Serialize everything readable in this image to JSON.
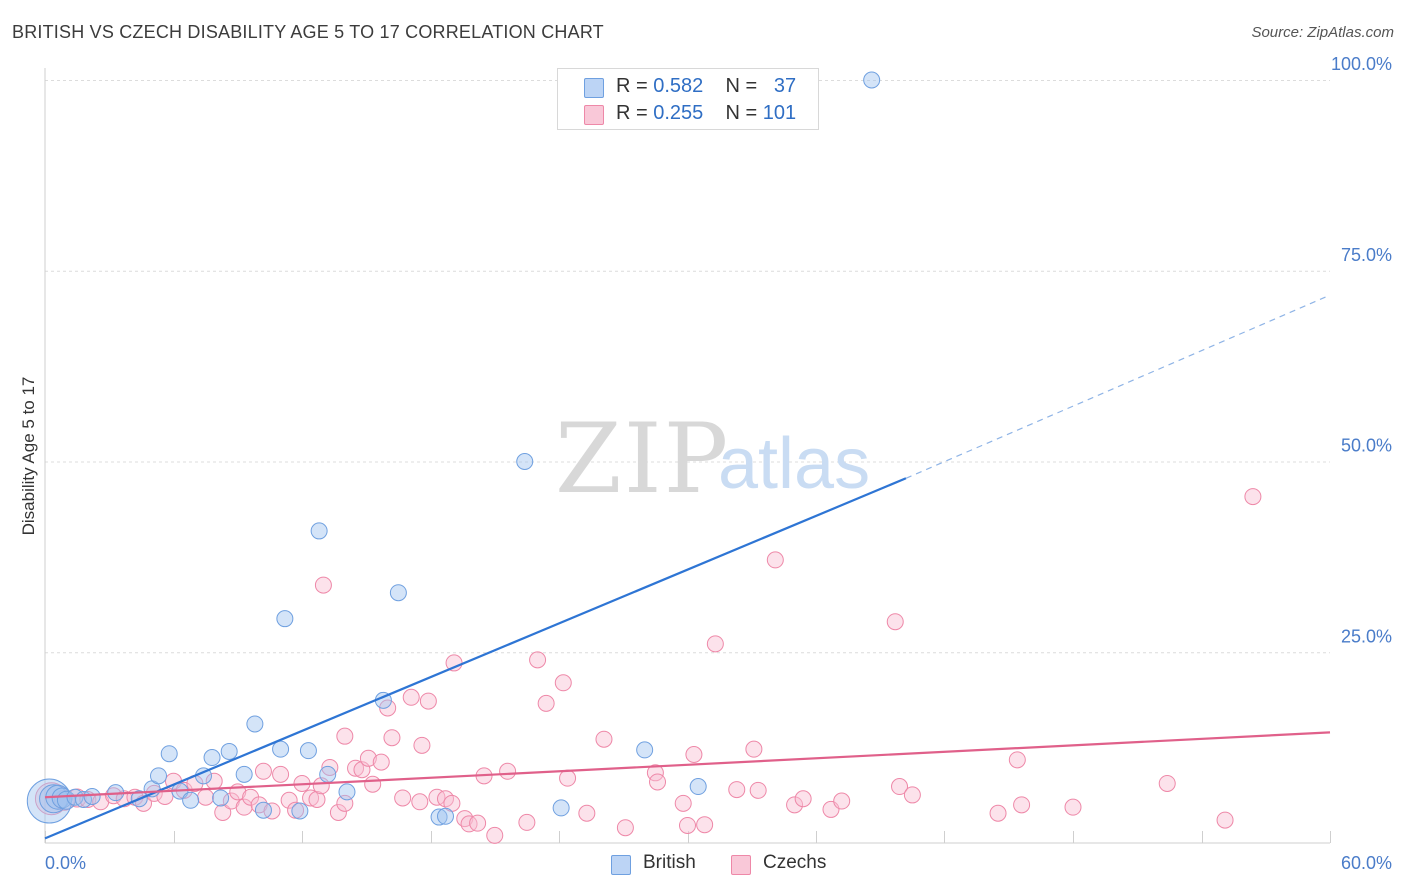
{
  "title": "BRITISH VS CZECH DISABILITY AGE 5 TO 17 CORRELATION CHART",
  "source": "Source: ZipAtlas.com",
  "watermark": {
    "zip": "ZIP",
    "atlas": "atlas"
  },
  "legend": {
    "r_label": "R =",
    "n_label": "N =",
    "items": [
      {
        "name": "British",
        "r": "0.582",
        "n": "37",
        "color": "#6fa0e0",
        "fill": "#bcd4f5"
      },
      {
        "name": "Czechs",
        "r": "0.255",
        "n": "101",
        "color": "#ee88a8",
        "fill": "#f9c8d8"
      }
    ]
  },
  "chart_data": {
    "type": "scatter",
    "title": "BRITISH VS CZECH DISABILITY AGE 5 TO 17 CORRELATION CHART",
    "xlabel": "",
    "ylabel": "Disability Age 5 to 17",
    "xlim": [
      0,
      60
    ],
    "ylim": [
      0,
      100
    ],
    "x_tick_labels": [
      "0.0%",
      "60.0%"
    ],
    "y_ticks": [
      25,
      50,
      75,
      100
    ],
    "y_tick_labels": [
      "25.0%",
      "50.0%",
      "75.0%",
      "100.0%"
    ],
    "series": [
      {
        "name": "British",
        "color": "#6fa0e0",
        "trend": {
          "x0": 0,
          "y0": 0.6,
          "x1": 40.2,
          "y1": 47.8,
          "dash_to_x": 60,
          "dash_to_y": 71.8,
          "color": "#2e75d4"
        },
        "points": [
          [
            0.2,
            5.5,
            22
          ],
          [
            0.4,
            5.8,
            14
          ],
          [
            0.6,
            6.0,
            12
          ],
          [
            0.8,
            5.9,
            10
          ],
          [
            1.0,
            5.6,
            9
          ],
          [
            1.4,
            6.0,
            8
          ],
          [
            1.8,
            5.7,
            8
          ],
          [
            2.2,
            6.1,
            8
          ],
          [
            3.3,
            6.6,
            8
          ],
          [
            4.4,
            5.8,
            8
          ],
          [
            5.0,
            7.1,
            8
          ],
          [
            5.3,
            8.8,
            8
          ],
          [
            5.8,
            11.7,
            8
          ],
          [
            6.3,
            6.8,
            8
          ],
          [
            6.8,
            5.6,
            8
          ],
          [
            7.4,
            8.8,
            8
          ],
          [
            7.8,
            11.2,
            8
          ],
          [
            8.2,
            5.9,
            8
          ],
          [
            8.6,
            12.0,
            8
          ],
          [
            9.3,
            9.0,
            8
          ],
          [
            9.8,
            15.6,
            8
          ],
          [
            10.2,
            4.3,
            8
          ],
          [
            11.0,
            12.3,
            8
          ],
          [
            11.2,
            29.4,
            8
          ],
          [
            11.9,
            4.2,
            8
          ],
          [
            12.3,
            12.1,
            8
          ],
          [
            12.8,
            40.9,
            8
          ],
          [
            13.2,
            9.0,
            8
          ],
          [
            14.1,
            6.7,
            8
          ],
          [
            15.8,
            18.7,
            8
          ],
          [
            16.5,
            32.8,
            8
          ],
          [
            18.4,
            3.4,
            8
          ],
          [
            18.7,
            3.5,
            8
          ],
          [
            22.4,
            50.0,
            8
          ],
          [
            24.1,
            4.6,
            8
          ],
          [
            28.0,
            12.2,
            8
          ],
          [
            30.5,
            7.4,
            8
          ],
          [
            38.6,
            100.0,
            8
          ]
        ]
      },
      {
        "name": "Czechs",
        "color": "#ee88a8",
        "trend": {
          "x0": 0,
          "y0": 6.0,
          "x1": 60,
          "y1": 14.5,
          "color": "#e0608a"
        },
        "points": [
          [
            0.3,
            5.8,
            16
          ],
          [
            0.9,
            5.6,
            10
          ],
          [
            1.5,
            5.9,
            9
          ],
          [
            2.0,
            5.7,
            8
          ],
          [
            2.6,
            5.4,
            8
          ],
          [
            3.2,
            6.2,
            8
          ],
          [
            3.7,
            5.8,
            8
          ],
          [
            4.2,
            6.0,
            8
          ],
          [
            4.6,
            5.2,
            8
          ],
          [
            5.1,
            6.5,
            8
          ],
          [
            5.6,
            6.1,
            8
          ],
          [
            6.0,
            8.1,
            8
          ],
          [
            6.5,
            6.9,
            8
          ],
          [
            7.0,
            7.8,
            8
          ],
          [
            7.5,
            6.0,
            8
          ],
          [
            7.9,
            8.1,
            8
          ],
          [
            8.3,
            4.0,
            8
          ],
          [
            8.7,
            5.5,
            8
          ],
          [
            9.0,
            6.7,
            8
          ],
          [
            9.3,
            4.7,
            8
          ],
          [
            9.6,
            6.0,
            8
          ],
          [
            10.0,
            5.0,
            8
          ],
          [
            10.2,
            9.4,
            8
          ],
          [
            10.6,
            4.2,
            8
          ],
          [
            11.0,
            9.0,
            8
          ],
          [
            11.4,
            5.6,
            8
          ],
          [
            11.7,
            4.3,
            8
          ],
          [
            12.0,
            7.8,
            8
          ],
          [
            12.4,
            5.9,
            8
          ],
          [
            12.7,
            5.7,
            8
          ],
          [
            12.9,
            7.5,
            8
          ],
          [
            13.3,
            9.9,
            8
          ],
          [
            13.0,
            33.8,
            8
          ],
          [
            13.7,
            4.0,
            8
          ],
          [
            14.0,
            5.2,
            8
          ],
          [
            14.0,
            14.0,
            8
          ],
          [
            14.5,
            9.8,
            8
          ],
          [
            14.8,
            9.6,
            8
          ],
          [
            15.1,
            11.1,
            8
          ],
          [
            15.3,
            7.7,
            8
          ],
          [
            15.7,
            10.6,
            8
          ],
          [
            16.2,
            13.8,
            8
          ],
          [
            16.0,
            17.7,
            8
          ],
          [
            16.7,
            5.9,
            8
          ],
          [
            17.1,
            19.1,
            8
          ],
          [
            17.5,
            5.4,
            8
          ],
          [
            17.6,
            12.8,
            8
          ],
          [
            17.9,
            18.6,
            8
          ],
          [
            18.3,
            6.0,
            8
          ],
          [
            18.7,
            5.8,
            8
          ],
          [
            19.0,
            5.2,
            8
          ],
          [
            19.1,
            23.6,
            8
          ],
          [
            19.6,
            3.2,
            8
          ],
          [
            19.8,
            2.5,
            8
          ],
          [
            20.2,
            2.6,
            8
          ],
          [
            20.5,
            8.8,
            8
          ],
          [
            21.0,
            1.0,
            8
          ],
          [
            21.6,
            9.4,
            8
          ],
          [
            22.5,
            2.7,
            8
          ],
          [
            23.0,
            24.0,
            8
          ],
          [
            23.4,
            18.3,
            8
          ],
          [
            24.2,
            21.0,
            8
          ],
          [
            24.4,
            8.5,
            8
          ],
          [
            25.3,
            3.9,
            8
          ],
          [
            26.1,
            13.6,
            8
          ],
          [
            27.1,
            2.0,
            8
          ],
          [
            28.5,
            9.2,
            8
          ],
          [
            28.6,
            8.0,
            8
          ],
          [
            29.8,
            5.2,
            8
          ],
          [
            30.0,
            2.3,
            8
          ],
          [
            30.3,
            11.6,
            8
          ],
          [
            30.8,
            2.4,
            8
          ],
          [
            31.3,
            26.1,
            8
          ],
          [
            32.3,
            7.0,
            8
          ],
          [
            33.1,
            12.3,
            8
          ],
          [
            33.3,
            6.9,
            8
          ],
          [
            34.1,
            37.1,
            8
          ],
          [
            35.0,
            5.0,
            8
          ],
          [
            35.4,
            5.8,
            8
          ],
          [
            36.7,
            4.4,
            8
          ],
          [
            37.2,
            5.5,
            8
          ],
          [
            39.7,
            29.0,
            8
          ],
          [
            39.9,
            7.4,
            8
          ],
          [
            40.5,
            6.3,
            8
          ],
          [
            44.5,
            3.9,
            8
          ],
          [
            45.4,
            10.9,
            8
          ],
          [
            45.6,
            5.0,
            8
          ],
          [
            48.0,
            4.7,
            8
          ],
          [
            52.4,
            7.8,
            8
          ],
          [
            55.1,
            3.0,
            8
          ],
          [
            56.4,
            45.4,
            8
          ]
        ]
      }
    ]
  }
}
